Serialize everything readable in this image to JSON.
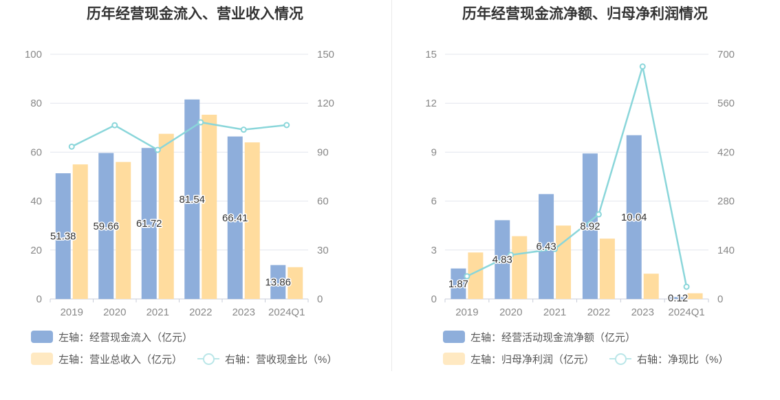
{
  "chart_data": [
    {
      "type": "bar",
      "title": "历年经营现金流入、营业收入情况",
      "categories": [
        "2019",
        "2020",
        "2021",
        "2022",
        "2023",
        "2024Q1"
      ],
      "series": [
        {
          "name": "左轴：经营现金流入（亿元）",
          "type": "bar",
          "axis": "left",
          "color": "#8eaedb",
          "values": [
            51.38,
            59.66,
            61.72,
            81.54,
            66.41,
            13.86
          ],
          "labels": [
            "51.38",
            "59.66",
            "61.72",
            "81.54",
            "66.41",
            "13.86"
          ]
        },
        {
          "name": "左轴：营业总收入（亿元）",
          "type": "bar",
          "axis": "left",
          "color": "#ffdc9e",
          "values": [
            55.0,
            56.0,
            67.5,
            75.3,
            64.0,
            13.0
          ]
        },
        {
          "name": "右轴：营收现金比（%）",
          "type": "line",
          "axis": "right",
          "color": "#8ad6da",
          "values": [
            93.4,
            106.5,
            91.4,
            108.3,
            103.8,
            106.6
          ]
        }
      ],
      "left_axis": {
        "min": 0,
        "max": 100,
        "ticks": [
          "0",
          "20",
          "40",
          "60",
          "80",
          "100"
        ]
      },
      "right_axis": {
        "min": 0,
        "max": 150,
        "ticks": [
          "0",
          "30",
          "60",
          "90",
          "120",
          "150"
        ]
      },
      "grid": true,
      "legend_position": "bottom-left"
    },
    {
      "type": "bar",
      "title": "历年经营现金流净额、归母净利润情况",
      "categories": [
        "2019",
        "2020",
        "2021",
        "2022",
        "2023",
        "2024Q1"
      ],
      "series": [
        {
          "name": "左轴：经营活动现金流净额（亿元）",
          "type": "bar",
          "axis": "left",
          "color": "#8eaedb",
          "values": [
            1.87,
            4.83,
            6.43,
            8.92,
            10.04,
            0.12
          ],
          "labels": [
            "1.87",
            "4.83",
            "6.43",
            "8.92",
            "10.04",
            "0.12"
          ]
        },
        {
          "name": "左轴：归母净利润（亿元）",
          "type": "bar",
          "axis": "left",
          "color": "#ffdc9e",
          "values": [
            2.85,
            3.85,
            4.5,
            3.7,
            1.55,
            0.35
          ]
        },
        {
          "name": "右轴：净现比（%）",
          "type": "line",
          "axis": "right",
          "color": "#8ad6da",
          "values": [
            65,
            126,
            143,
            242,
            665,
            35
          ]
        }
      ],
      "left_axis": {
        "min": 0,
        "max": 15,
        "ticks": [
          "0",
          "3",
          "6",
          "9",
          "12",
          "15"
        ]
      },
      "right_axis": {
        "min": 0,
        "max": 700,
        "ticks": [
          "0",
          "140",
          "280",
          "420",
          "560",
          "700"
        ]
      },
      "grid": true,
      "legend_position": "bottom-left"
    }
  ]
}
